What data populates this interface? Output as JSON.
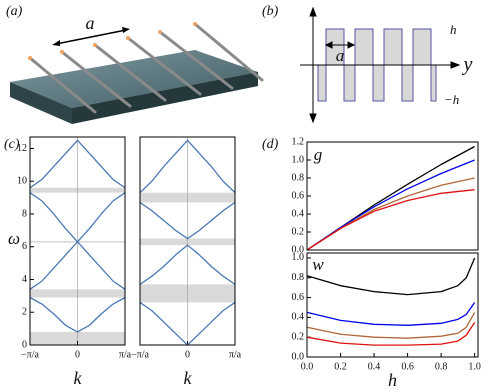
{
  "panel_a": {
    "label": "(a)",
    "spacing_label": "a"
  },
  "panel_b": {
    "label": "(b)",
    "spacing_label": "a",
    "axis_label": "y",
    "upper_label": "h",
    "lower_label": "−h"
  },
  "panel_c_label": "(c)",
  "panel_d_label": "(d)",
  "chart_data": [
    {
      "type": "line",
      "x_label": "k",
      "y_label": "ω",
      "center_line": true,
      "x": [
        -1,
        -0.75,
        -0.5,
        -0.25,
        0,
        0.25,
        0.5,
        0.75,
        1
      ],
      "xlim": [
        -1,
        1
      ],
      "xticks": [
        {
          "value": -1,
          "label": "−π/a"
        },
        0,
        {
          "value": 1,
          "label": "π/a"
        }
      ],
      "ylim": [
        0,
        12.7
      ],
      "yticks": [
        0,
        2,
        4,
        6,
        8,
        10,
        12
      ],
      "gaps": [
        [
          0,
          0.8
        ],
        [
          2.9,
          3.4
        ],
        [
          6.25,
          6.35
        ],
        [
          9.3,
          9.6
        ]
      ],
      "series": [
        {
          "color": "#4a78b5",
          "values": [
            2.9,
            2.5,
            1.9,
            1.2,
            0.8,
            1.2,
            1.9,
            2.5,
            2.9
          ]
        },
        {
          "color": "#4a78b5",
          "values": [
            3.4,
            3.9,
            4.7,
            5.5,
            6.3,
            5.5,
            4.7,
            3.9,
            3.4
          ]
        },
        {
          "color": "#4a78b5",
          "values": [
            9.3,
            8.8,
            8.0,
            7.1,
            6.3,
            7.1,
            8.0,
            8.8,
            9.3
          ]
        },
        {
          "color": "#4a78b5",
          "values": [
            9.6,
            10.1,
            10.9,
            11.7,
            12.5,
            11.7,
            10.9,
            10.1,
            9.6
          ]
        }
      ]
    },
    {
      "type": "line",
      "x_label": "k",
      "center_line": true,
      "x": [
        -1,
        -0.75,
        -0.5,
        -0.25,
        0,
        0.25,
        0.5,
        0.75,
        1
      ],
      "xlim": [
        -1,
        1
      ],
      "xticks": [
        {
          "value": -1,
          "label": "−π/a"
        },
        0,
        {
          "value": 1,
          "label": "π/a"
        }
      ],
      "ylim": [
        0,
        12.7
      ],
      "gaps": [
        [
          2.6,
          3.7
        ],
        [
          6.1,
          6.5
        ],
        [
          8.7,
          9.3
        ]
      ],
      "series": [
        {
          "color": "#4a78b5",
          "values": [
            2.6,
            2.1,
            1.4,
            0.7,
            0,
            0.7,
            1.4,
            2.1,
            2.6
          ]
        },
        {
          "color": "#4a78b5",
          "values": [
            3.7,
            4.2,
            4.8,
            5.5,
            6.1,
            5.5,
            4.8,
            4.2,
            3.7
          ]
        },
        {
          "color": "#4a78b5",
          "values": [
            8.7,
            8.2,
            7.6,
            7.0,
            6.5,
            7.0,
            7.6,
            8.2,
            8.7
          ]
        },
        {
          "color": "#4a78b5",
          "values": [
            9.3,
            10.0,
            10.9,
            11.7,
            12.5,
            11.7,
            10.9,
            10.0,
            9.3
          ]
        }
      ]
    },
    {
      "type": "line",
      "y_label": "g",
      "x": [
        0,
        0.2,
        0.4,
        0.6,
        0.8,
        1.0
      ],
      "xlim": [
        0,
        1.02
      ],
      "ylim": [
        0,
        1.2
      ],
      "yticks": [
        {
          "value": 0,
          "label": "0.0"
        },
        {
          "value": 0.2,
          "label": "0.2"
        },
        {
          "value": 0.4,
          "label": "0.4"
        },
        {
          "value": 0.6,
          "label": "0.6"
        },
        {
          "value": 0.8,
          "label": "0.8"
        },
        {
          "value": 1,
          "label": "1.0"
        },
        {
          "value": 1.2,
          "label": "1.2"
        }
      ],
      "series": [
        {
          "color": "#000000",
          "values": [
            0,
            0.25,
            0.5,
            0.73,
            0.95,
            1.15
          ]
        },
        {
          "color": "#0000ee",
          "values": [
            0,
            0.25,
            0.48,
            0.68,
            0.85,
            1.0
          ]
        },
        {
          "color": "#b0663a",
          "values": [
            0,
            0.24,
            0.45,
            0.6,
            0.72,
            0.8
          ]
        },
        {
          "color": "#e01010",
          "values": [
            0,
            0.24,
            0.43,
            0.55,
            0.63,
            0.67
          ]
        }
      ]
    },
    {
      "type": "line",
      "y_label": "w",
      "x_label": "h",
      "x": [
        0,
        0.2,
        0.4,
        0.6,
        0.8,
        0.9,
        0.95,
        1.0
      ],
      "xlim": [
        0,
        1.02
      ],
      "xticks": [
        {
          "value": 0,
          "label": "0.0"
        },
        {
          "value": 0.2,
          "label": "0.2"
        },
        {
          "value": 0.4,
          "label": "0.4"
        },
        {
          "value": 0.6,
          "label": "0.6"
        },
        {
          "value": 0.8,
          "label": "0.8"
        },
        {
          "value": 1,
          "label": "1.0"
        }
      ],
      "ylim": [
        0,
        1.05
      ],
      "yticks": [
        {
          "value": 0,
          "label": "0.0"
        },
        {
          "value": 0.2,
          "label": "0.2"
        },
        {
          "value": 0.4,
          "label": "0.4"
        },
        {
          "value": 0.6,
          "label": "0.6"
        },
        {
          "value": 0.8,
          "label": "0.8"
        },
        {
          "value": 1,
          "label": "1.0"
        }
      ],
      "series": [
        {
          "color": "#000000",
          "values": [
            0.82,
            0.72,
            0.66,
            0.63,
            0.66,
            0.72,
            0.8,
            1.0
          ]
        },
        {
          "color": "#0000ee",
          "values": [
            0.45,
            0.37,
            0.33,
            0.32,
            0.34,
            0.38,
            0.43,
            0.55
          ]
        },
        {
          "color": "#b0663a",
          "values": [
            0.3,
            0.23,
            0.2,
            0.19,
            0.21,
            0.24,
            0.3,
            0.45
          ]
        },
        {
          "color": "#e01010",
          "values": [
            0.2,
            0.14,
            0.12,
            0.12,
            0.13,
            0.16,
            0.22,
            0.35
          ]
        }
      ]
    }
  ]
}
